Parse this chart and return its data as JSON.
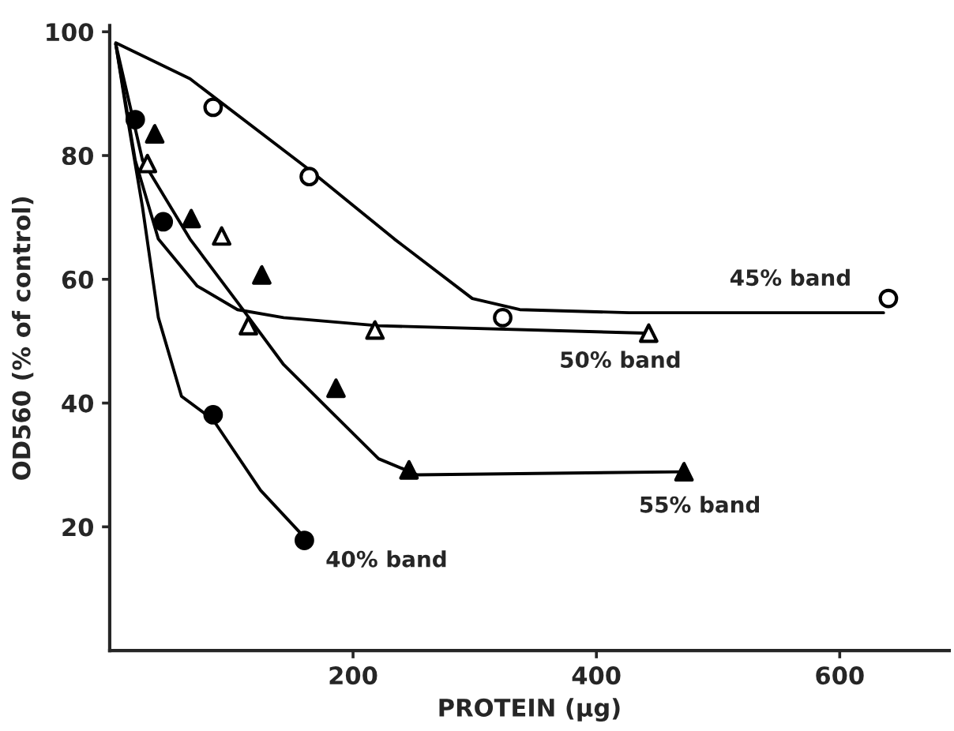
{
  "chart_data": {
    "type": "scatter",
    "xlabel": "PROTEIN (µg)",
    "ylabel": "OD560 (% of control)",
    "xlim": [
      0,
      690
    ],
    "ylim": [
      0,
      101
    ],
    "xticks": [
      200,
      400,
      600
    ],
    "yticks": [
      20,
      40,
      60,
      80,
      100
    ],
    "grid": false,
    "legend": false,
    "series": [
      {
        "type": "line",
        "color": "#000000",
        "x": [
          5,
          66,
          164,
          234,
          298,
          337,
          427,
          636
        ],
        "values": [
          98.2,
          92.4,
          77.7,
          66.5,
          56.9,
          55.1,
          54.6,
          54.6
        ]
      },
      {
        "type": "line",
        "color": "#000000",
        "x": [
          5,
          21,
          40,
          72,
          105,
          143,
          221,
          440
        ],
        "values": [
          98,
          79.2,
          66.5,
          58.9,
          55.1,
          53.8,
          52.5,
          51.3
        ]
      },
      {
        "type": "line",
        "color": "#000000",
        "x": [
          5,
          27,
          66,
          105,
          143,
          182,
          221,
          253,
          472
        ],
        "values": [
          98,
          79.2,
          66.5,
          56.3,
          46.2,
          38.6,
          31,
          28.4,
          28.9
        ]
      },
      {
        "type": "line",
        "color": "#000000",
        "x": [
          5,
          14,
          27,
          40,
          59,
          85,
          124,
          160
        ],
        "values": [
          98,
          86.8,
          71.6,
          53.8,
          41.1,
          37.3,
          25.9,
          18.3
        ]
      },
      {
        "name": "45% band",
        "marker": "circle",
        "color": "#ffffff",
        "x": [
          85,
          164,
          323,
          640
        ],
        "values": [
          87.8,
          76.6,
          53.8,
          56.9
        ]
      },
      {
        "name": "50% band",
        "marker": "triangle",
        "color": "#ffffff",
        "x": [
          31,
          92,
          114,
          218,
          443
        ],
        "values": [
          78.7,
          67,
          52.5,
          51.8,
          51.3
        ]
      },
      {
        "name": "55% band",
        "marker": "triangle",
        "color": "#000000",
        "x": [
          37,
          67,
          125,
          186,
          246,
          472
        ],
        "values": [
          83.5,
          69.8,
          60.7,
          42.4,
          29.2,
          28.9
        ]
      },
      {
        "name": "40% band",
        "marker": "circle",
        "color": "#000000",
        "x": [
          21,
          44,
          85,
          160
        ],
        "values": [
          85.8,
          69.3,
          38.1,
          17.8
        ]
      }
    ]
  }
}
